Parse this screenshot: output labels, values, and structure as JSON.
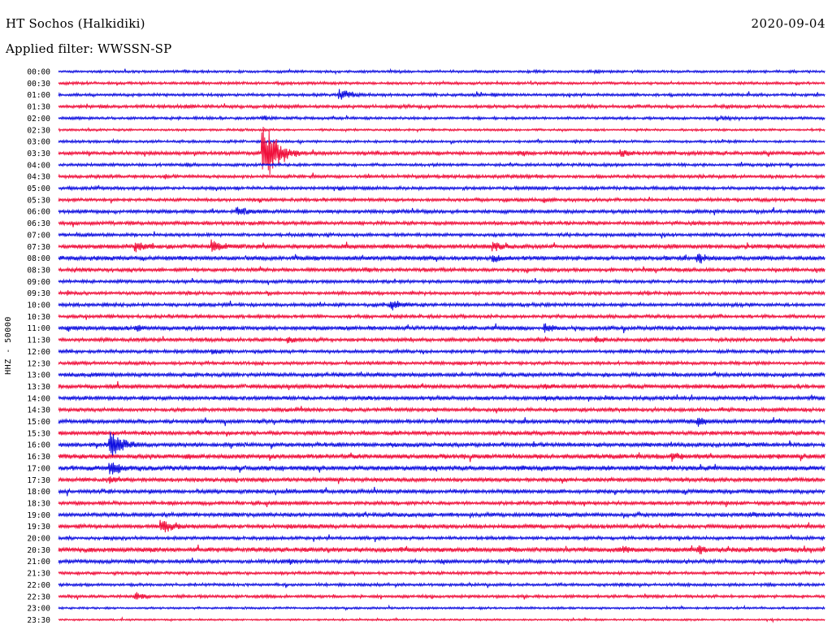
{
  "header": {
    "station": "HT Sochos (Halkidiki)",
    "date": "2020-09-04",
    "filter_label": "Applied filter:",
    "filter_value": "WWSSN-SP"
  },
  "colors": {
    "even_trace": "#1010e0",
    "odd_trace": "#f0103c",
    "background": "#ffffff",
    "text": "#000000"
  },
  "chart_data": {
    "type": "line",
    "title": "HT Sochos (Halkidiki)",
    "subtitle": "Applied filter: WWSSN-SP",
    "ylabel": "HHZ - 50000",
    "xlabel": "",
    "grid": false,
    "legend": "none",
    "trace_colors": [
      "#1010e0",
      "#f0103c"
    ],
    "tick_labels": [
      "00:00",
      "00:30",
      "01:00",
      "01:30",
      "02:00",
      "02:30",
      "03:00",
      "03:30",
      "04:00",
      "04:30",
      "05:00",
      "05:30",
      "06:00",
      "06:30",
      "07:00",
      "07:30",
      "08:00",
      "08:30",
      "09:00",
      "09:30",
      "10:00",
      "10:30",
      "11:00",
      "11:30",
      "12:00",
      "12:30",
      "13:00",
      "13:30",
      "14:00",
      "14:30",
      "15:00",
      "15:30",
      "16:00",
      "16:30",
      "17:00",
      "17:30",
      "18:00",
      "18:30",
      "19:00",
      "19:30",
      "20:00",
      "20:30",
      "21:00",
      "21:30",
      "22:00",
      "22:30",
      "23:00",
      "23:30"
    ],
    "baseline_amplitude": [
      1.4,
      1.5,
      1.6,
      1.8,
      1.5,
      1.2,
      1.4,
      2.0,
      1.6,
      1.8,
      1.8,
      1.8,
      2.0,
      2.0,
      1.8,
      2.4,
      2.4,
      2.0,
      1.8,
      1.8,
      1.9,
      1.9,
      2.2,
      2.0,
      1.8,
      1.8,
      2.2,
      2.4,
      2.2,
      2.0,
      2.2,
      2.2,
      2.3,
      2.6,
      2.6,
      2.2,
      2.2,
      2.0,
      2.2,
      2.2,
      1.8,
      2.6,
      2.0,
      1.6,
      1.6,
      1.6,
      1.2,
      1.0
    ],
    "events": [
      {
        "trace": "00:00",
        "minute": 21,
        "amplitude": 3
      },
      {
        "trace": "01:00",
        "minute": 11,
        "amplitude": 9
      },
      {
        "trace": "01:00",
        "minute": 17,
        "amplitude": 4
      },
      {
        "trace": "01:30",
        "minute": 5,
        "amplitude": 4
      },
      {
        "trace": "02:00",
        "minute": 26,
        "amplitude": 4
      },
      {
        "trace": "02:00",
        "minute": 8,
        "amplitude": 4
      },
      {
        "trace": "03:30",
        "minute": 8,
        "amplitude": 45
      },
      {
        "trace": "03:30",
        "minute": 18,
        "amplitude": 6
      },
      {
        "trace": "03:30",
        "minute": 22,
        "amplitude": 6
      },
      {
        "trace": "04:00",
        "minute": 5,
        "amplitude": 4
      },
      {
        "trace": "05:00",
        "minute": 11,
        "amplitude": 4
      },
      {
        "trace": "05:30",
        "minute": 19,
        "amplitude": 5
      },
      {
        "trace": "06:00",
        "minute": 7,
        "amplitude": 9
      },
      {
        "trace": "07:30",
        "minute": 3,
        "amplitude": 9
      },
      {
        "trace": "07:30",
        "minute": 6,
        "amplitude": 12
      },
      {
        "trace": "07:30",
        "minute": 17,
        "amplitude": 8
      },
      {
        "trace": "08:00",
        "minute": 17,
        "amplitude": 7
      },
      {
        "trace": "08:00",
        "minute": 25,
        "amplitude": 10
      },
      {
        "trace": "10:00",
        "minute": 13,
        "amplitude": 8
      },
      {
        "trace": "11:00",
        "minute": 3,
        "amplitude": 6
      },
      {
        "trace": "11:00",
        "minute": 19,
        "amplitude": 8
      },
      {
        "trace": "11:30",
        "minute": 9,
        "amplitude": 6
      },
      {
        "trace": "11:30",
        "minute": 21,
        "amplitude": 6
      },
      {
        "trace": "11:30",
        "minute": 30,
        "amplitude": 9
      },
      {
        "trace": "12:00",
        "minute": 6,
        "amplitude": 5
      },
      {
        "trace": "13:30",
        "minute": 19,
        "amplitude": 5
      },
      {
        "trace": "14:00",
        "minute": 19,
        "amplitude": 5
      },
      {
        "trace": "15:00",
        "minute": 25,
        "amplitude": 8
      },
      {
        "trace": "15:00",
        "minute": 28,
        "amplitude": 6
      },
      {
        "trace": "16:00",
        "minute": 2,
        "amplitude": 20
      },
      {
        "trace": "16:30",
        "minute": 24,
        "amplitude": 9
      },
      {
        "trace": "16:30",
        "minute": 5,
        "amplitude": 6
      },
      {
        "trace": "17:00",
        "minute": 2,
        "amplitude": 12
      },
      {
        "trace": "17:00",
        "minute": 18,
        "amplitude": 5
      },
      {
        "trace": "17:30",
        "minute": 2,
        "amplitude": 8
      },
      {
        "trace": "18:00",
        "minute": 25,
        "amplitude": 5
      },
      {
        "trace": "19:00",
        "minute": 27,
        "amplitude": 6
      },
      {
        "trace": "19:30",
        "minute": 4,
        "amplitude": 12
      },
      {
        "trace": "19:30",
        "minute": 9,
        "amplitude": 4
      },
      {
        "trace": "20:30",
        "minute": 22,
        "amplitude": 7
      },
      {
        "trace": "20:30",
        "minute": 25,
        "amplitude": 8
      },
      {
        "trace": "21:00",
        "minute": 9,
        "amplitude": 5
      },
      {
        "trace": "21:00",
        "minute": 15,
        "amplitude": 5
      },
      {
        "trace": "22:00",
        "minute": 22,
        "amplitude": 4
      },
      {
        "trace": "22:30",
        "minute": 3,
        "amplitude": 7
      }
    ]
  }
}
